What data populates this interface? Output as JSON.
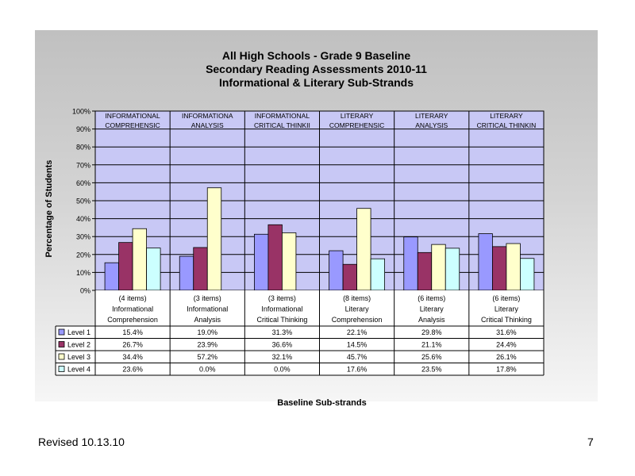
{
  "slide": {
    "footer_left": "Revised  10.13.10",
    "page_number": "7"
  },
  "chart_data": {
    "type": "bar",
    "title_lines": [
      "All High Schools - Grade 9 Baseline",
      "Secondary Reading Assessments 2010-11",
      "Informational & Literary Sub-Strands"
    ],
    "ylabel": "Percentage of Students",
    "xlabel": "Baseline Sub-strands",
    "ylim": [
      0,
      100
    ],
    "yticks": [
      "0%",
      "10%",
      "20%",
      "30%",
      "40%",
      "50%",
      "60%",
      "70%",
      "80%",
      "90%",
      "100%"
    ],
    "grid": true,
    "legend": "data-table-left",
    "plot_bg": "#c8c8f5",
    "group_headers": [
      [
        "INFORMATIONAL",
        "COMPREHENSIC"
      ],
      [
        "INFORMATIONA",
        "ANALYSIS"
      ],
      [
        "INFORMATIONAL",
        "CRITICAL THINKII"
      ],
      [
        "LITERARY",
        "COMPREHENSIC"
      ],
      [
        "LITERARY",
        "ANALYSIS"
      ],
      [
        "LITERARY",
        "CRITICAL THINKIN"
      ]
    ],
    "categories": [
      [
        "(4 items)",
        "Informational",
        "Comprehension"
      ],
      [
        "(3 items)",
        "Informational",
        "Analysis"
      ],
      [
        "(3 items)",
        "Informational",
        "Critical Thinking"
      ],
      [
        "(8 items)",
        "Literary",
        "Comprehension"
      ],
      [
        "(6 items)",
        "Literary",
        "Analysis"
      ],
      [
        "(6 items)",
        "Literary",
        "Critical Thinking"
      ]
    ],
    "series": [
      {
        "name": "Level 1",
        "color": "#9999ff",
        "values": [
          15.4,
          19.0,
          31.3,
          22.1,
          29.8,
          31.6
        ],
        "labels": [
          "15.4%",
          "19.0%",
          "31.3%",
          "22.1%",
          "29.8%",
          "31.6%"
        ]
      },
      {
        "name": "Level 2",
        "color": "#993366",
        "values": [
          26.7,
          23.9,
          36.6,
          14.5,
          21.1,
          24.4
        ],
        "labels": [
          "26.7%",
          "23.9%",
          "36.6%",
          "14.5%",
          "21.1%",
          "24.4%"
        ]
      },
      {
        "name": "Level 3",
        "color": "#ffffcc",
        "values": [
          34.4,
          57.2,
          32.1,
          45.7,
          25.6,
          26.1
        ],
        "labels": [
          "34.4%",
          "57.2%",
          "32.1%",
          "45.7%",
          "25.6%",
          "26.1%"
        ]
      },
      {
        "name": "Level 4",
        "color": "#ccffff",
        "values": [
          23.6,
          0.0,
          0.0,
          17.6,
          23.5,
          17.8
        ],
        "labels": [
          "23.6%",
          "0.0%",
          "0.0%",
          "17.6%",
          "23.5%",
          "17.8%"
        ]
      }
    ]
  }
}
